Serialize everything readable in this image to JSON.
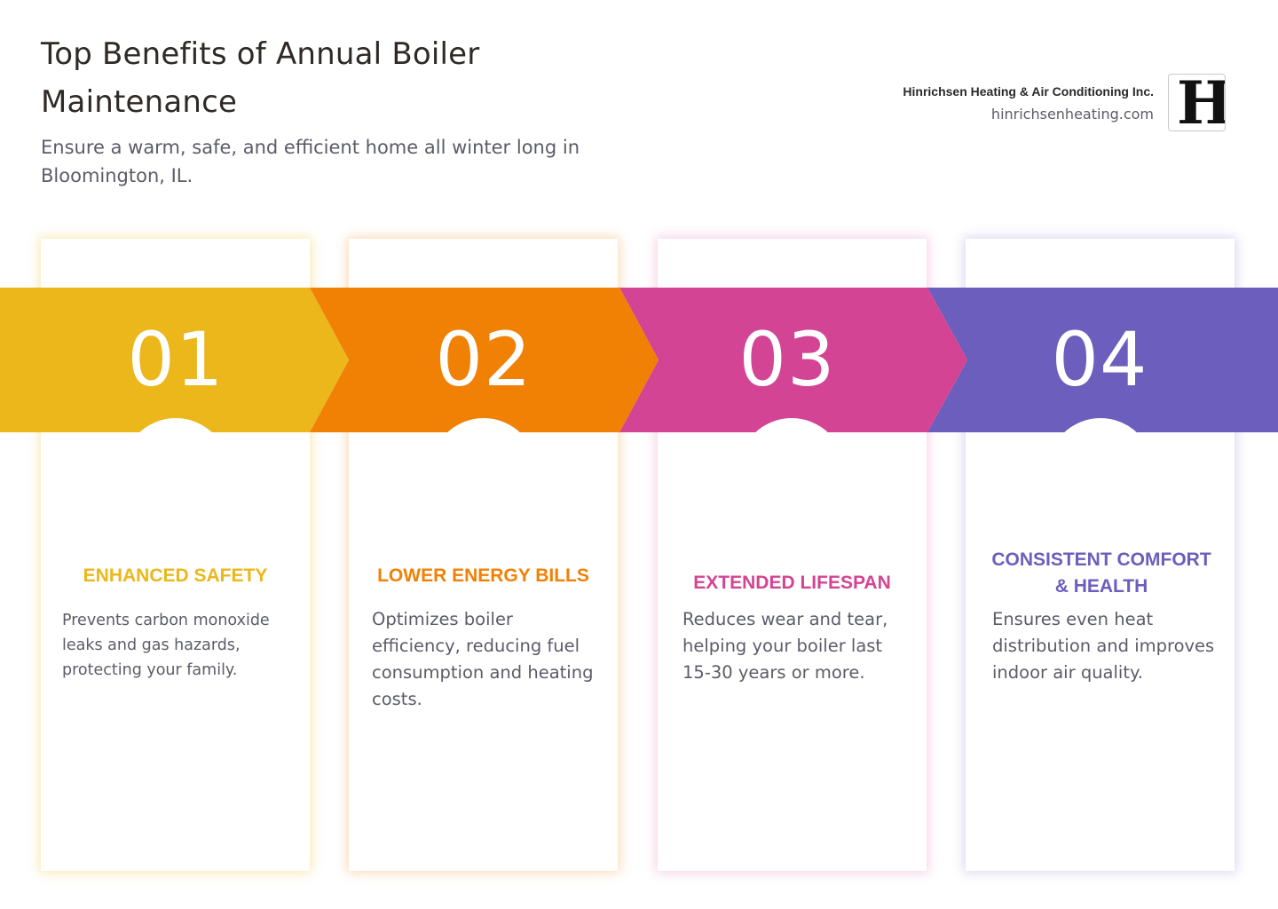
{
  "header": {
    "title": "Top Benefits of Annual Boiler Maintenance",
    "subtitle": "Ensure a warm, safe, and efficient home all winter long in Bloomington, IL."
  },
  "brand": {
    "name": "Hinrichsen Heating & Air Conditioning Inc.",
    "url": "hinrichsenheating.com",
    "logo_letter": "H"
  },
  "colors": {
    "yellow": "#EBB71A",
    "orange": "#F08104",
    "magenta": "#D44494",
    "purple": "#6C5EBC"
  },
  "benefits": [
    {
      "number": "01",
      "icon": "siren-icon",
      "glyph": "🚨",
      "title": "ENHANCED SAFETY",
      "description": "Prevents carbon monoxide leaks and gas hazards, protecting your family."
    },
    {
      "number": "02",
      "icon": "money-bag-icon",
      "glyph": "💰",
      "title": "LOWER ENERGY BILLS",
      "description": "Optimizes boiler efficiency, reducing fuel consumption and heating costs."
    },
    {
      "number": "03",
      "icon": "stopwatch-icon",
      "glyph": "⏱️",
      "title": "EXTENDED LIFESPAN",
      "description": "Reduces wear and tear, helping your boiler last 15-30 years or more."
    },
    {
      "number": "04",
      "icon": "house-icon",
      "glyph": "🏠",
      "title": "CONSISTENT COMFORT & HEALTH",
      "description": "Ensures even heat distribution and improves indoor air quality."
    }
  ]
}
